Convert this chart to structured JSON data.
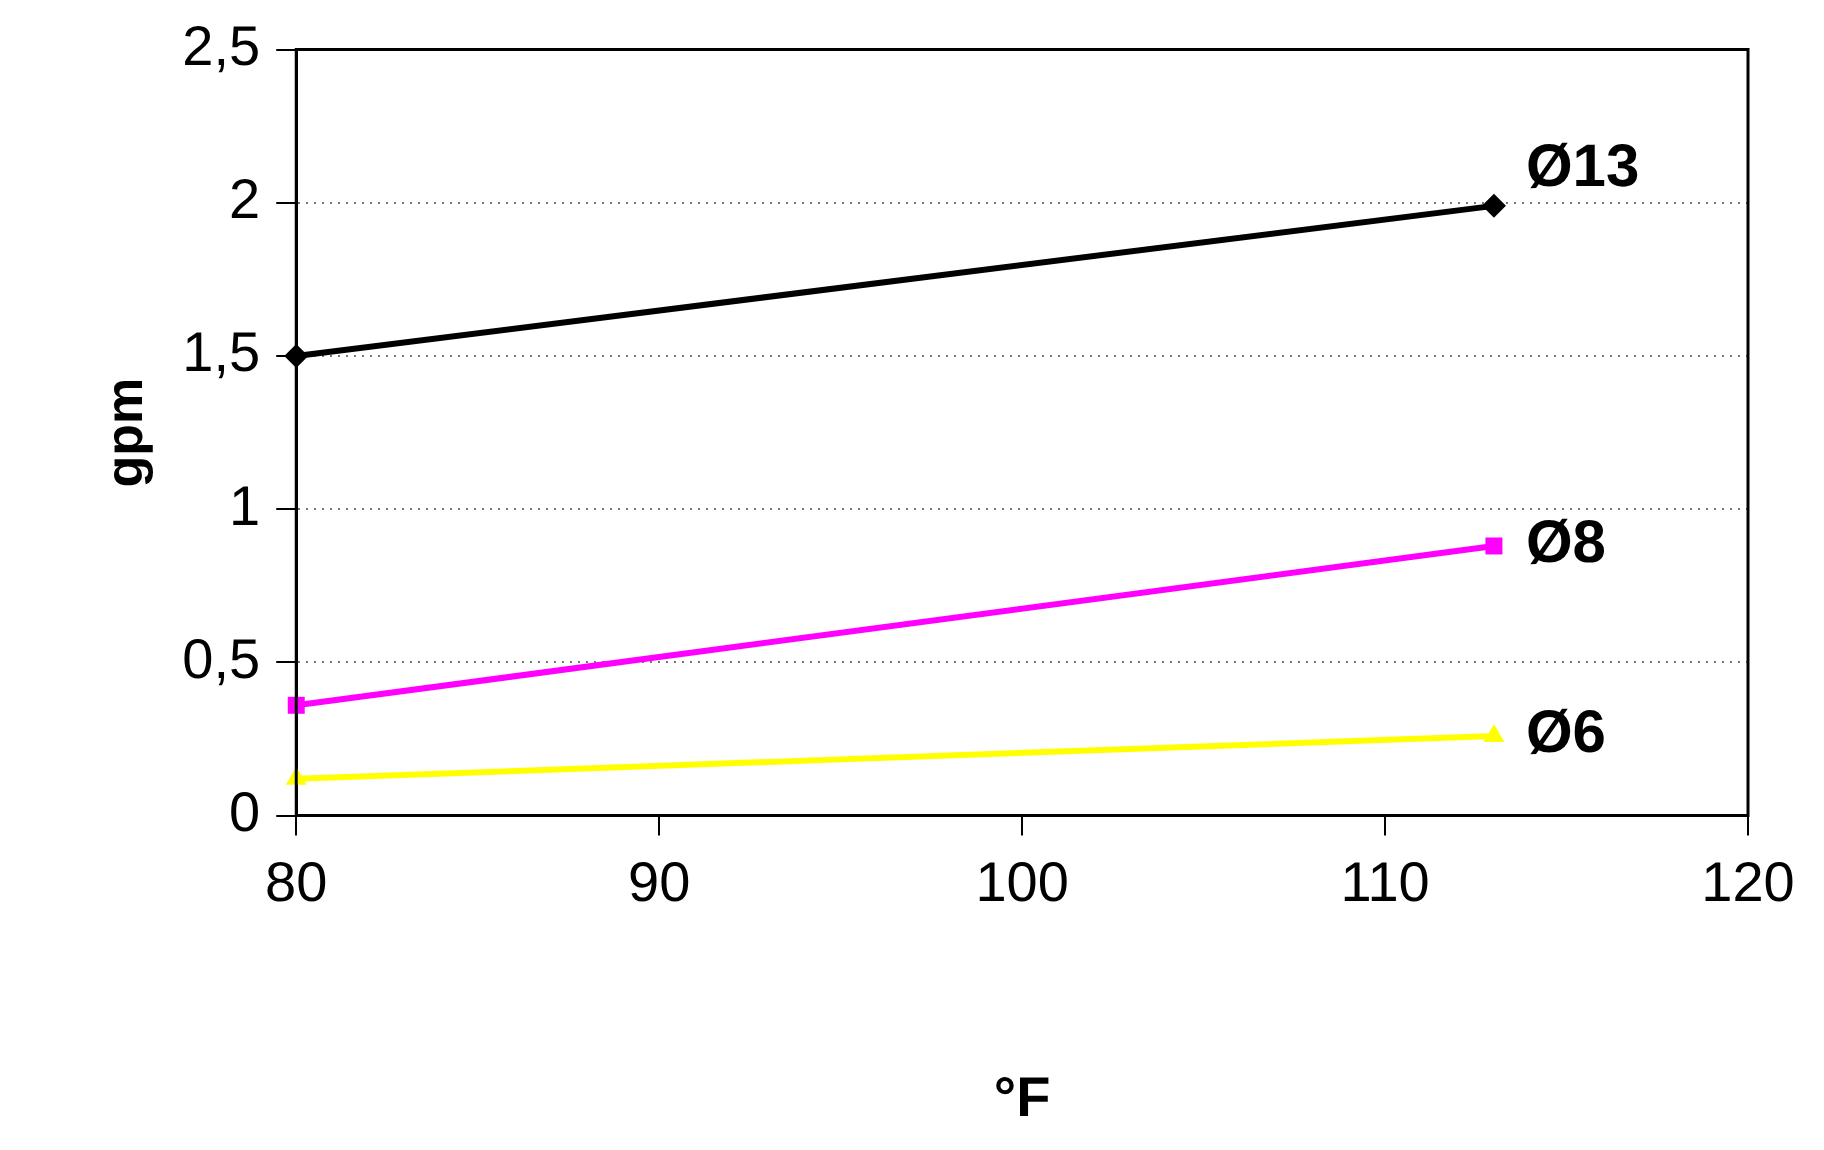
{
  "chart_data": {
    "type": "line",
    "xlabel": "°F",
    "ylabel": "gpm",
    "xlim": [
      80,
      120
    ],
    "xticks": [
      80,
      90,
      100,
      110,
      120
    ],
    "ylim": [
      0,
      2.5
    ],
    "yticks": [
      0,
      {
        "value": 0.5,
        "label": "0,5"
      },
      1,
      {
        "value": 1.5,
        "label": "1,5"
      },
      2,
      {
        "value": 2.5,
        "label": "2,5"
      }
    ],
    "x": [
      80,
      113
    ],
    "grid": "y",
    "legend": false,
    "line_style": "solid",
    "series": [
      {
        "name": "Ø13",
        "color": "#000000",
        "marker": "diamond",
        "values": [
          1.5,
          1.99
        ]
      },
      {
        "name": "Ø8",
        "color": "#ff00ff",
        "marker": "square",
        "values": [
          0.36,
          0.88
        ]
      },
      {
        "name": "Ø6",
        "color": "#ffff00",
        "marker": "triangle",
        "values": [
          0.12,
          0.26
        ]
      }
    ]
  }
}
